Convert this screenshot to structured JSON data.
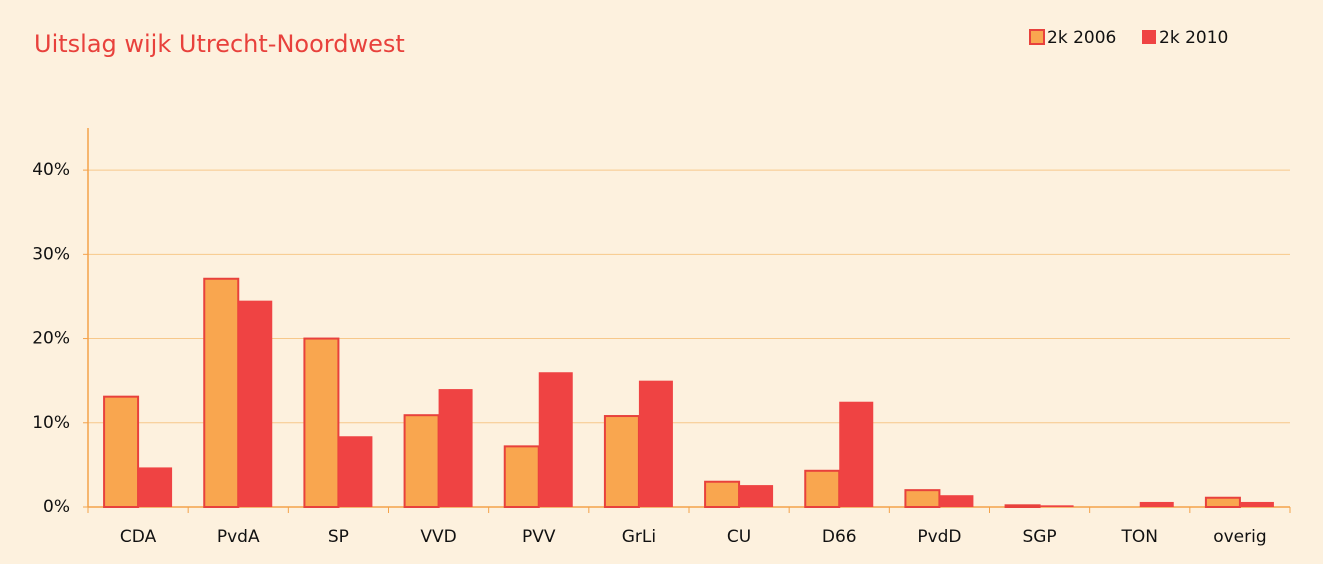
{
  "chart_data": {
    "type": "bar",
    "title": "Uitslag wijk Utrecht-Noordwest",
    "categories": [
      "CDA",
      "PvdA",
      "SP",
      "VVD",
      "PVV",
      "GrLi",
      "CU",
      "D66",
      "PvdD",
      "SGP",
      "TON",
      "overig"
    ],
    "series": [
      {
        "name": "2k 2006",
        "color": "#f9a64f",
        "values": [
          13.1,
          27.1,
          20.0,
          10.9,
          7.2,
          10.8,
          3.0,
          4.3,
          2.0,
          0.2,
          null,
          1.1
        ]
      },
      {
        "name": "2k 2010",
        "color": "#ef4343",
        "values": [
          4.7,
          24.5,
          8.4,
          14.0,
          16.0,
          15.0,
          2.6,
          12.5,
          1.4,
          0.2,
          0.6,
          0.6
        ]
      }
    ],
    "ylim": [
      0,
      45
    ],
    "yticks": [
      {
        "value": 0,
        "label": "0%"
      },
      {
        "value": 10,
        "label": "10%"
      },
      {
        "value": 20,
        "label": "20%"
      },
      {
        "value": 30,
        "label": "30%"
      },
      {
        "value": 40,
        "label": "40%"
      }
    ],
    "grid": true,
    "legend": "top-right"
  }
}
